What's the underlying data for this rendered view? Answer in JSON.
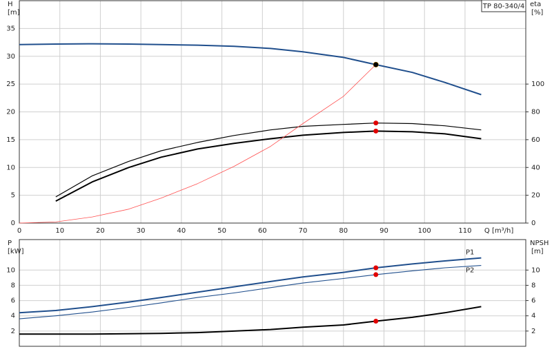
{
  "chart_data": [
    {
      "type": "line",
      "title": "TP 80-340/4",
      "ylabel": "H",
      "yunit": "[m]",
      "y2label": "eta",
      "y2unit": "[%]",
      "xlabel": "Q [m³/h]",
      "x": [
        0,
        9,
        18,
        27,
        35,
        44,
        53,
        62,
        70,
        80,
        88,
        97,
        105,
        114
      ],
      "xlim": [
        0,
        125
      ],
      "xticks": [
        0,
        10,
        20,
        30,
        40,
        50,
        60,
        70,
        80,
        90,
        100,
        110
      ],
      "ylim": [
        0,
        40
      ],
      "yticks": [
        0,
        5,
        10,
        15,
        20,
        25,
        30,
        35
      ],
      "y2lim": [
        0,
        160
      ],
      "y2ticks": [
        0,
        20,
        40,
        60,
        80,
        100
      ],
      "grid": true,
      "marker_index": 10,
      "series": [
        {
          "color": "#1f4e8c",
          "width": 2,
          "marker_color": "#ffcc00",
          "values": [
            32.1,
            32.2,
            32.25,
            32.2,
            32.1,
            32.0,
            31.8,
            31.4,
            30.8,
            29.8,
            28.5,
            27.1,
            25.3,
            23.1
          ]
        },
        {
          "color": "#000000",
          "width": 1.2,
          "axis": "y2",
          "marker_color": "#e00000",
          "values": [
            null,
            18.8,
            34,
            44.4,
            52,
            58,
            63,
            67,
            69.6,
            71,
            72,
            71.6,
            70,
            67
          ]
        },
        {
          "color": "#000000",
          "width": 2,
          "axis": "y2",
          "marker_color": "#e00000",
          "values": [
            null,
            15.8,
            29.6,
            40,
            47.4,
            53.3,
            57.3,
            60.7,
            63.2,
            65.2,
            66.2,
            65.7,
            64.2,
            60.7
          ]
        },
        {
          "color": "#ff5050",
          "width": 0.8,
          "values": [
            0,
            0.2,
            1.1,
            2.5,
            4.5,
            7.1,
            10.2,
            13.8,
            17.9,
            22.8,
            28.5,
            null,
            null,
            null
          ]
        }
      ]
    },
    {
      "type": "line",
      "ylabel": "P",
      "yunit": "[kW]",
      "y2label": "NPSH",
      "y2unit": "[m]",
      "x": [
        0,
        9,
        18,
        27,
        35,
        44,
        53,
        62,
        70,
        80,
        88,
        97,
        105,
        114
      ],
      "xlim": [
        0,
        125
      ],
      "xticks": [
        0,
        10,
        20,
        30,
        40,
        50,
        60,
        70,
        80,
        90,
        100,
        110
      ],
      "ylim": [
        0,
        14
      ],
      "yticks": [
        2,
        4,
        6,
        8,
        10
      ],
      "y2lim": [
        0,
        14
      ],
      "y2ticks": [
        2,
        4,
        6,
        8,
        10
      ],
      "grid": true,
      "marker_index": 10,
      "series": [
        {
          "name": "P1",
          "color": "#1f4e8c",
          "width": 2,
          "marker_color": "#e00000",
          "values": [
            4.4,
            4.7,
            5.2,
            5.8,
            6.4,
            7.1,
            7.8,
            8.5,
            9.1,
            9.7,
            10.3,
            10.8,
            11.2,
            11.6
          ]
        },
        {
          "name": "P2",
          "color": "#1f4e8c",
          "width": 1.1,
          "marker_color": "#e00000",
          "values": [
            3.6,
            4.0,
            4.5,
            5.1,
            5.7,
            6.4,
            7.0,
            7.7,
            8.3,
            8.9,
            9.4,
            9.9,
            10.3,
            10.6
          ]
        },
        {
          "color": "#000000",
          "width": 2,
          "axis": "y2",
          "marker_color": "#e00000",
          "values": [
            1.6,
            1.6,
            1.6,
            1.65,
            1.7,
            1.8,
            2.0,
            2.2,
            2.5,
            2.8,
            3.3,
            3.8,
            4.4,
            5.2
          ]
        }
      ]
    }
  ]
}
